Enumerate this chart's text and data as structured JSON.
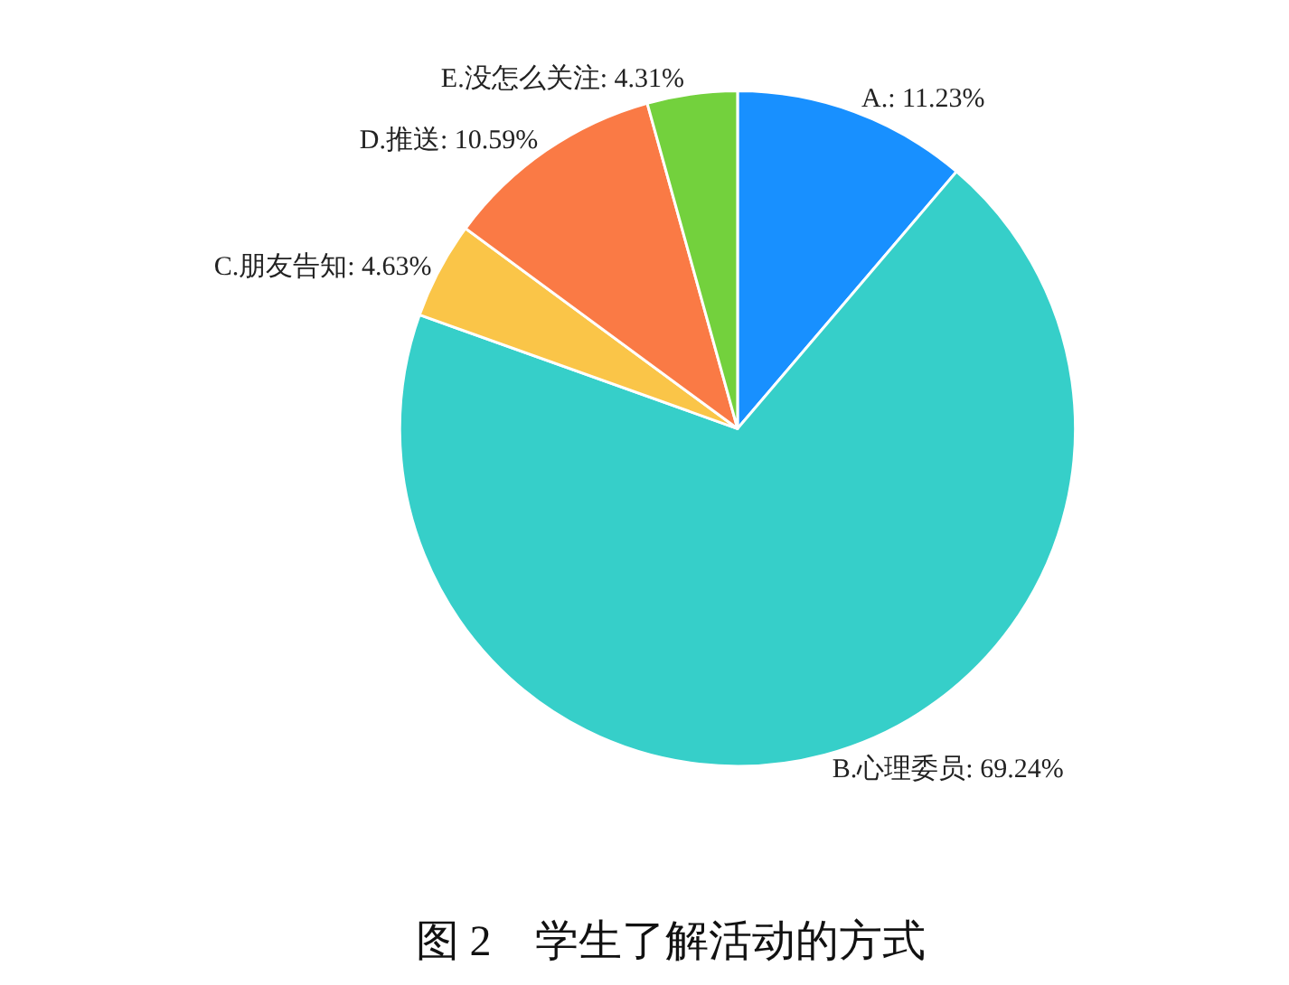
{
  "chart_data": {
    "type": "pie",
    "title": "图 2　学生了解活动的方式",
    "categories": [
      "A.: 11.23%",
      "B.心理委员: 69.24%",
      "C.朋友告知: 4.63%",
      "D.推送: 10.59%",
      "E.没怎么关注: 4.31%"
    ],
    "values": [
      11.23,
      69.24,
      4.63,
      10.59,
      4.31
    ],
    "colors": [
      "#1890ff",
      "#36cfc9",
      "#fac548",
      "#fa7a45",
      "#73d13d"
    ]
  }
}
